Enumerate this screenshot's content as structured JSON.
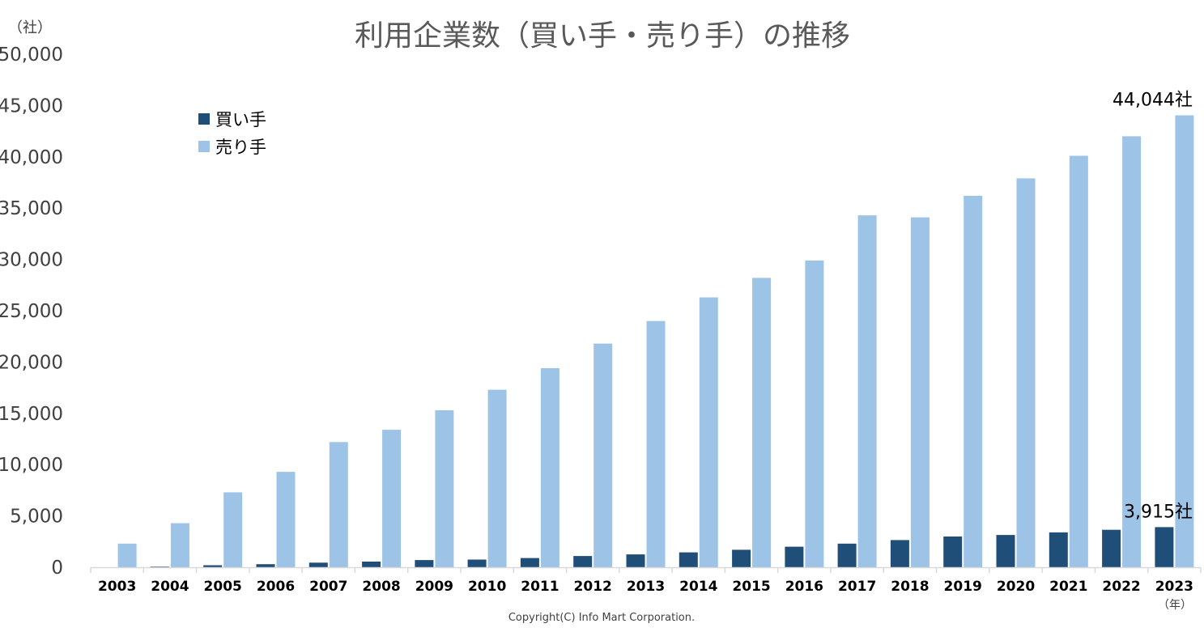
{
  "chart_data": {
    "type": "bar",
    "title": "利用企業数（買い手・売り手）の推移",
    "y_unit_label": "（社）",
    "x_unit_label": "（年）",
    "categories": [
      "2003",
      "2004",
      "2005",
      "2006",
      "2007",
      "2008",
      "2009",
      "2010",
      "2011",
      "2012",
      "2013",
      "2014",
      "2015",
      "2016",
      "2017",
      "2018",
      "2019",
      "2020",
      "2021",
      "2022",
      "2023"
    ],
    "series": [
      {
        "name": "買い手",
        "color": "#1F4E79",
        "values": [
          0,
          60,
          200,
          300,
          450,
          550,
          700,
          750,
          900,
          1100,
          1250,
          1450,
          1700,
          2000,
          2300,
          2650,
          3000,
          3150,
          3400,
          3650,
          3915
        ]
      },
      {
        "name": "売り手",
        "color": "#9DC3E6",
        "values": [
          2300,
          4300,
          7300,
          9300,
          12200,
          13400,
          15300,
          17300,
          19400,
          21800,
          24000,
          26300,
          28200,
          29900,
          34300,
          34100,
          36200,
          37900,
          40100,
          42000,
          44044
        ]
      }
    ],
    "ylim": [
      0,
      50000
    ],
    "yticks": [
      "0",
      "5,000",
      "10,000",
      "15,000",
      "20,000",
      "25,000",
      "30,000",
      "35,000",
      "40,000",
      "45,000",
      "50,000"
    ],
    "grid": false,
    "legend_position": "top-left",
    "annotations": [
      {
        "text": "44,044社",
        "series": 1,
        "category": "2023"
      },
      {
        "text": "3,915社",
        "series": 0,
        "category": "2023"
      }
    ]
  },
  "copyright": "Copyright(C) Info Mart Corporation."
}
